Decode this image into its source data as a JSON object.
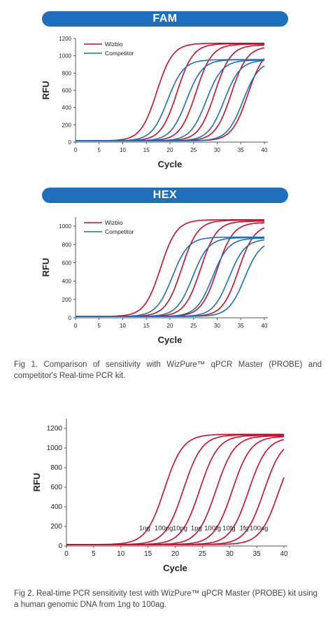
{
  "captions": {
    "fig1": "Fig 1. Comparison of sensitivity with WizPure™ qPCR Master (PROBE) and competitor's Real-time PCR kit.",
    "fig2": "Fig 2. Real-time PCR sensitivity test with WizPure™ qPCR Master (PROBE) kit using a human genomic DNA from 1ng to 100ag."
  },
  "colors": {
    "wizbio": "#c8102e",
    "competitor": "#1f6fb4",
    "banner": "#1f6fbf"
  },
  "chart_data": [
    {
      "type": "line",
      "title": "FAM",
      "xlabel": "Cycle",
      "ylabel": "RFU",
      "xlim": [
        0,
        40
      ],
      "ylim": [
        0,
        1200
      ],
      "xticks": [
        0,
        5,
        10,
        15,
        20,
        25,
        30,
        35,
        40
      ],
      "yticks": [
        0,
        200,
        400,
        600,
        800,
        1000,
        1200
      ],
      "legend": "top-left",
      "series": [
        {
          "name": "Wizbio",
          "color": "#c8102e",
          "curves": [
            {
              "midpoint": 17.2,
              "plateau": 1145
            },
            {
              "midpoint": 21.5,
              "plateau": 1140
            },
            {
              "midpoint": 25.5,
              "plateau": 1135
            },
            {
              "midpoint": 29.5,
              "plateau": 1125
            },
            {
              "midpoint": 33.0,
              "plateau": 1110
            },
            {
              "midpoint": 36.5,
              "plateau": 1090
            }
          ]
        },
        {
          "name": "Competitor",
          "color": "#1f6fb4",
          "curves": [
            {
              "midpoint": 19.5,
              "plateau": 955
            },
            {
              "midpoint": 23.5,
              "plateau": 955
            },
            {
              "midpoint": 27.7,
              "plateau": 950
            },
            {
              "midpoint": 31.5,
              "plateau": 950
            },
            {
              "midpoint": 35.5,
              "plateau": 945
            }
          ]
        }
      ]
    },
    {
      "type": "line",
      "title": "HEX",
      "xlabel": "Cycle",
      "ylabel": "RFU",
      "xlim": [
        0,
        40
      ],
      "ylim": [
        0,
        1100
      ],
      "xticks": [
        0,
        5,
        10,
        15,
        20,
        25,
        30,
        35,
        40
      ],
      "yticks": [
        0,
        200,
        400,
        600,
        800,
        1000
      ],
      "legend": "top-left",
      "series": [
        {
          "name": "Wizbio",
          "color": "#c8102e",
          "curves": [
            {
              "midpoint": 18.0,
              "plateau": 1070
            },
            {
              "midpoint": 22.5,
              "plateau": 1065
            },
            {
              "midpoint": 26.5,
              "plateau": 1055
            },
            {
              "midpoint": 30.0,
              "plateau": 1040
            },
            {
              "midpoint": 34.5,
              "plateau": 1020
            }
          ]
        },
        {
          "name": "Competitor",
          "color": "#1f6fb4",
          "curves": [
            {
              "midpoint": 20.5,
              "plateau": 880
            },
            {
              "midpoint": 24.8,
              "plateau": 875
            },
            {
              "midpoint": 29.0,
              "plateau": 870
            },
            {
              "midpoint": 32.5,
              "plateau": 860
            },
            {
              "midpoint": 35.8,
              "plateau": 850
            }
          ]
        }
      ]
    },
    {
      "type": "line",
      "xlabel": "Cycle",
      "ylabel": "RFU",
      "xlim": [
        0,
        40
      ],
      "ylim": [
        0,
        1300
      ],
      "xticks": [
        0,
        5,
        10,
        15,
        20,
        25,
        30,
        35,
        40
      ],
      "yticks": [
        0,
        200,
        400,
        600,
        800,
        1000,
        1200
      ],
      "series": [
        {
          "name": "1ng",
          "color": "#c8102e",
          "midpoint": 18.0,
          "plateau": 1140
        },
        {
          "name": "100pg",
          "color": "#c8102e",
          "midpoint": 21.5,
          "plateau": 1135
        },
        {
          "name": "10pg",
          "color": "#c8102e",
          "midpoint": 24.5,
          "plateau": 1130
        },
        {
          "name": "1pg",
          "color": "#c8102e",
          "midpoint": 27.5,
          "plateau": 1125
        },
        {
          "name": "100fg",
          "color": "#c8102e",
          "midpoint": 30.5,
          "plateau": 1120
        },
        {
          "name": "10fg",
          "color": "#c8102e",
          "midpoint": 33.5,
          "plateau": 1110
        },
        {
          "name": "1fg",
          "color": "#c8102e",
          "midpoint": 36.3,
          "plateau": 1100
        },
        {
          "name": "100ag",
          "color": "#c8102e",
          "midpoint": 39.0,
          "plateau": 1080
        }
      ],
      "annotations": [
        "1ng",
        "100pg",
        "10pg",
        "1pg",
        "100fg",
        "10fg",
        "1fg",
        "100ag"
      ]
    }
  ]
}
